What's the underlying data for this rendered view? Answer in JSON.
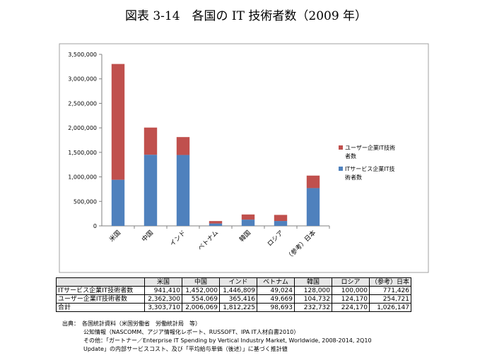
{
  "figure_title": "図表 3-14　各国の IT 技術者数（2009 年）",
  "chart_data": {
    "type": "bar",
    "stacked": true,
    "categories": [
      "米国",
      "中国",
      "インド",
      "ベトナム",
      "韓国",
      "ロシア",
      "（参考）日本"
    ],
    "series": [
      {
        "name": "ITサービス企業IT技術者数",
        "color": "#4f81bd",
        "values": [
          941410,
          1452000,
          1446809,
          49024,
          128000,
          100000,
          771426
        ]
      },
      {
        "name": "ユーザー企業IT技術者数",
        "color": "#c0504d",
        "values": [
          2362300,
          554069,
          365416,
          49669,
          104732,
          124170,
          254721
        ]
      }
    ],
    "ylim": [
      0,
      3500000
    ],
    "yticks": [
      "0",
      "500,000",
      "1,000,000",
      "1,500,000",
      "2,000,000",
      "2,500,000",
      "3,000,000",
      "3,500,000"
    ],
    "grid": false,
    "legend": [
      {
        "color": "#c0504d",
        "lines": [
          "ユーザー企業IT技術",
          "者数"
        ]
      },
      {
        "color": "#4f81bd",
        "lines": [
          "ITサービス企業IT技",
          "術者数"
        ]
      }
    ],
    "legend_position": "right"
  },
  "table": {
    "headers": [
      "",
      "米国",
      "中国",
      "インド",
      "ベトナム",
      "韓国",
      "ロシア",
      "（参考）日本"
    ],
    "rows": [
      [
        "ITサービス企業IT技術者数",
        "941,410",
        "1,452,000",
        "1,446,809",
        "49,024",
        "128,000",
        "100,000",
        "771,426"
      ],
      [
        "ユーザー企業IT技術者数",
        "2,362,300",
        "554,069",
        "365,416",
        "49,669",
        "104,732",
        "124,170",
        "254,721"
      ],
      [
        "合計",
        "3,303,710",
        "2,006,069",
        "1,812,225",
        "98,693",
        "232,732",
        "224,170",
        "1,026,147"
      ]
    ]
  },
  "sources": [
    "出典：　各国統計資料（米国労働省　労働統計局　等）",
    "公知情報（NASCOMM、アジア情報化レポート、RUSSOFT、IPA IT人材白書2010）",
    "その他：「ガートナー／Enterprise IT Spending by Vertical Industry Market, Worldwide, 2008-2014, 2Q10",
    "Update」の内部サービスコスト、及び「平均給与単価（後述）」に基づく推計値"
  ]
}
